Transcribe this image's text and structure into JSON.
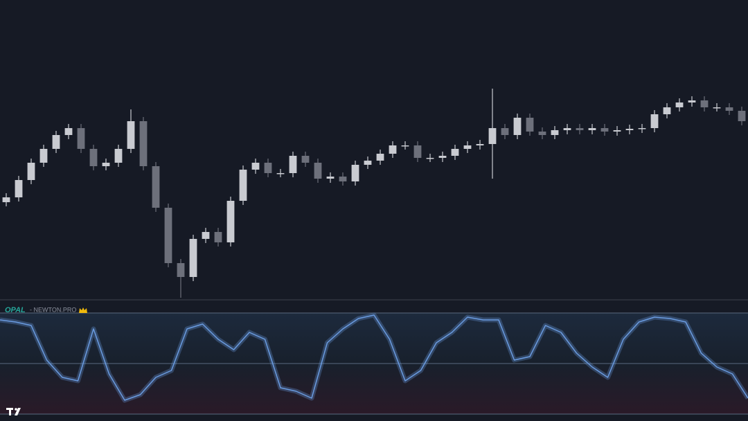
{
  "indicator": {
    "name": "OPAL",
    "source": "- NEWTON.PRO"
  },
  "chart_data": [
    {
      "type": "candlestick",
      "up_color": "#c9cbd1",
      "down_color": "#6d707b",
      "ylim": [
        0,
        432
      ],
      "categories": [
        null,
        null,
        null,
        null,
        null,
        null,
        null,
        null,
        null,
        null,
        null,
        null,
        null,
        null,
        null,
        null,
        null,
        null,
        null,
        null,
        null,
        null,
        null,
        null,
        null,
        null,
        null,
        null,
        null,
        null,
        null,
        null,
        null,
        null,
        null,
        null,
        null,
        null,
        null,
        null,
        null,
        null,
        null,
        null,
        null,
        null,
        null,
        null,
        null,
        null,
        null,
        null,
        null,
        null,
        null,
        null,
        null,
        null,
        null,
        null
      ],
      "open": [
        140,
        147,
        172,
        197,
        217,
        237,
        247,
        217,
        192,
        197,
        217,
        257,
        192,
        132,
        52,
        32,
        87,
        97,
        82,
        142,
        187,
        197,
        182,
        182,
        207,
        197,
        174,
        177,
        170,
        194,
        200,
        210,
        222,
        222,
        204,
        204,
        207,
        217,
        222,
        224,
        247,
        237,
        262,
        242,
        237,
        244,
        247,
        244,
        247,
        242,
        244,
        246,
        247,
        267,
        277,
        284,
        287,
        277,
        277,
        272
      ],
      "high": [
        153,
        178,
        203,
        223,
        243,
        253,
        253,
        223,
        203,
        223,
        274,
        263,
        198,
        138,
        58,
        93,
        103,
        103,
        148,
        193,
        203,
        203,
        188,
        213,
        213,
        203,
        183,
        183,
        200,
        206,
        216,
        228,
        228,
        228,
        210,
        213,
        223,
        228,
        230,
        304,
        253,
        268,
        268,
        248,
        250,
        253,
        253,
        253,
        253,
        250,
        252,
        253,
        273,
        283,
        290,
        293,
        293,
        283,
        283,
        278
      ],
      "low": [
        134,
        141,
        166,
        191,
        211,
        231,
        211,
        186,
        186,
        191,
        211,
        186,
        126,
        46,
        2,
        26,
        81,
        76,
        76,
        136,
        181,
        176,
        176,
        176,
        191,
        168,
        168,
        164,
        164,
        188,
        194,
        204,
        216,
        198,
        198,
        198,
        201,
        211,
        216,
        174,
        231,
        231,
        236,
        231,
        231,
        238,
        238,
        238,
        236,
        236,
        238,
        240,
        241,
        261,
        271,
        278,
        271,
        271,
        266,
        251
      ],
      "close": [
        147,
        172,
        197,
        217,
        237,
        247,
        217,
        192,
        197,
        217,
        257,
        192,
        132,
        52,
        32,
        87,
        97,
        82,
        142,
        187,
        197,
        182,
        182,
        207,
        197,
        174,
        177,
        170,
        194,
        200,
        210,
        222,
        222,
        204,
        204,
        207,
        217,
        222,
        224,
        247,
        237,
        262,
        242,
        237,
        244,
        247,
        244,
        247,
        242,
        244,
        246,
        247,
        267,
        277,
        284,
        287,
        277,
        277,
        272,
        257
      ]
    },
    {
      "type": "line",
      "color": "#6a9be0",
      "ylim": [
        0,
        146
      ],
      "categories": [
        null,
        null,
        null,
        null,
        null,
        null,
        null,
        null,
        null,
        null,
        null,
        null,
        null,
        null,
        null,
        null,
        null,
        null,
        null,
        null,
        null,
        null,
        null,
        null,
        null,
        null,
        null,
        null,
        null,
        null,
        null,
        null,
        null,
        null,
        null,
        null,
        null,
        null,
        null,
        null,
        null,
        null,
        null,
        null,
        null,
        null,
        null,
        null,
        null
      ],
      "values": [
        136,
        133,
        128,
        78,
        53,
        48,
        123,
        58,
        20,
        28,
        53,
        63,
        123,
        130,
        108,
        93,
        118,
        108,
        38,
        33,
        23,
        103,
        123,
        138,
        143,
        108,
        48,
        63,
        103,
        118,
        140,
        136,
        136,
        78,
        83,
        128,
        118,
        88,
        68,
        53,
        108,
        133,
        140,
        138,
        133,
        88,
        68,
        58,
        23
      ]
    }
  ]
}
